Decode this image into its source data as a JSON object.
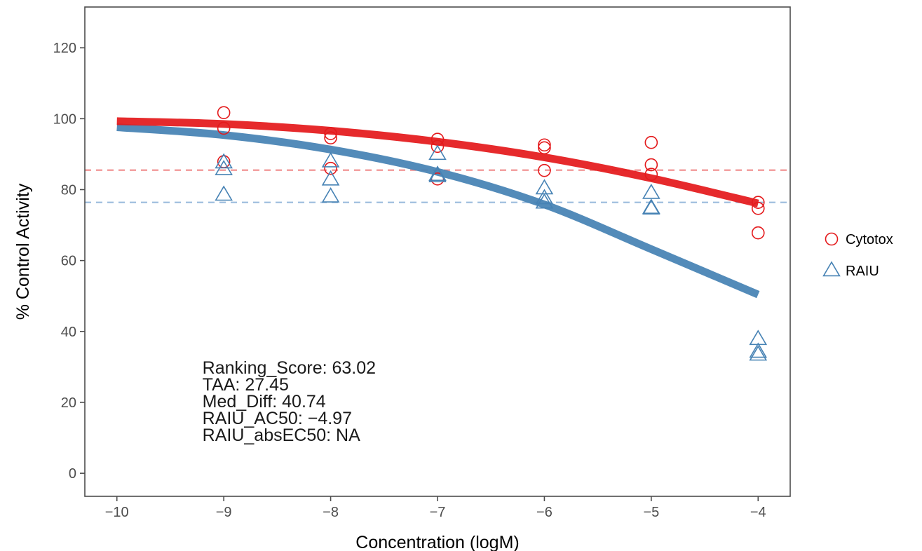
{
  "chart_data": {
    "type": "scatter",
    "xlabel": "Concentration (logM)",
    "ylabel": "% Control Activity",
    "xlim": [
      -10.3,
      -3.7
    ],
    "ylim": [
      -6.5,
      131.5
    ],
    "xticks": [
      -10,
      -9,
      -8,
      -7,
      -6,
      -5,
      -4
    ],
    "xtick_labels": [
      "−10",
      "−9",
      "−8",
      "−7",
      "−6",
      "−5",
      "−4"
    ],
    "yticks": [
      0,
      20,
      40,
      60,
      80,
      100,
      120
    ],
    "ytick_labels": [
      "0",
      "20",
      "40",
      "60",
      "80",
      "100",
      "120"
    ],
    "grid": false,
    "legend_position": "right",
    "series": [
      {
        "name": "Cytotox",
        "marker": "circle",
        "color": "#e41a1c",
        "points": [
          [
            -9,
            101.7
          ],
          [
            -9,
            97.3
          ],
          [
            -9,
            87.9
          ],
          [
            -8,
            95.8
          ],
          [
            -8,
            94.6
          ],
          [
            -8,
            86.0
          ],
          [
            -7,
            94.2
          ],
          [
            -7,
            92.2
          ],
          [
            -7,
            83.0
          ],
          [
            -6,
            92.6
          ],
          [
            -6,
            91.8
          ],
          [
            -6,
            85.4
          ],
          [
            -5,
            93.3
          ],
          [
            -5,
            87.0
          ],
          [
            -5,
            84.3
          ],
          [
            -4,
            76.4
          ],
          [
            -4,
            74.7
          ],
          [
            -4,
            67.8
          ]
        ],
        "fit_curve": [
          [
            -10,
            99.3
          ],
          [
            -9,
            98.5
          ],
          [
            -8,
            96.6
          ],
          [
            -7,
            93.5
          ],
          [
            -6,
            89.1
          ],
          [
            -5,
            83.2
          ],
          [
            -4,
            76.1
          ]
        ],
        "reference_line": 85.5
      },
      {
        "name": "RAIU",
        "marker": "triangle",
        "color": "#4682b4",
        "points": [
          [
            -9,
            87.6
          ],
          [
            -9,
            85.7
          ],
          [
            -9,
            78.5
          ],
          [
            -8,
            87.9
          ],
          [
            -8,
            82.8
          ],
          [
            -8,
            78.0
          ],
          [
            -7,
            90.0
          ],
          [
            -7,
            84.1
          ],
          [
            -7,
            83.7
          ],
          [
            -6,
            80.3
          ],
          [
            -6,
            77.5
          ],
          [
            -6,
            76.3
          ],
          [
            -5,
            79.0
          ],
          [
            -5,
            74.8
          ],
          [
            -5,
            74.6
          ],
          [
            -4,
            37.8
          ],
          [
            -4,
            34.2
          ],
          [
            -4,
            33.4
          ]
        ],
        "fit_curve": [
          [
            -10,
            97.6
          ],
          [
            -9,
            95.4
          ],
          [
            -8,
            91.3
          ],
          [
            -7,
            85.0
          ],
          [
            -6,
            75.8
          ],
          [
            -5,
            63.2
          ],
          [
            -4,
            50.4
          ]
        ],
        "reference_line": 76.4
      }
    ],
    "annotations": [
      "Ranking_Score: 63.02",
      "TAA: 27.45",
      "Med_Diff: 40.74",
      "RAIU_AC50: −4.97",
      "RAIU_absEC50: NA"
    ]
  }
}
